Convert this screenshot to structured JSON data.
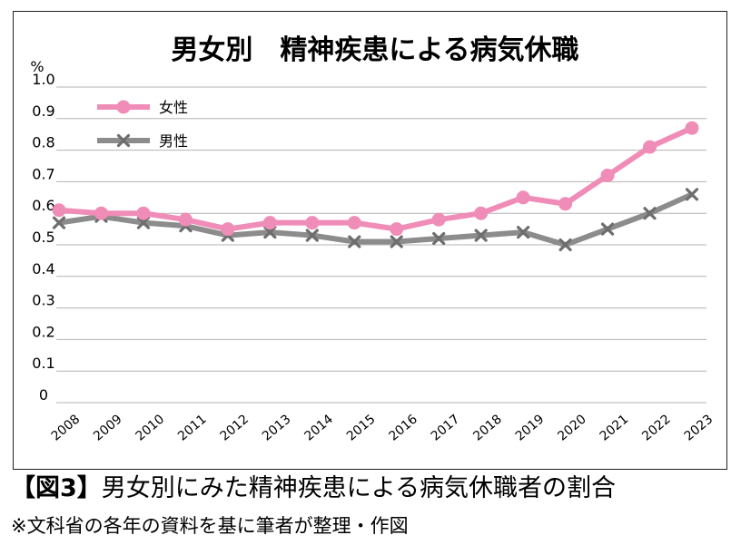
{
  "chart_data": {
    "type": "line",
    "title": "男女別　精神疾患による病気休職",
    "ylabel": "%",
    "ylim": [
      0,
      1.0
    ],
    "yticks": [
      "0",
      "0.1",
      "0.2",
      "0.3",
      "0.4",
      "0.5",
      "0.6",
      "0.7",
      "0.8",
      "0.9",
      "1.0"
    ],
    "grid": true,
    "legend_position": "top-left",
    "categories": [
      "2008",
      "2009",
      "2010",
      "2011",
      "2012",
      "2013",
      "2014",
      "2015",
      "2016",
      "2017",
      "2018",
      "2019",
      "2020",
      "2021",
      "2022",
      "2023"
    ],
    "series": [
      {
        "name": "女性",
        "color": "#f08cb8",
        "marker": "circle",
        "values": [
          0.61,
          0.6,
          0.6,
          0.58,
          0.55,
          0.57,
          0.57,
          0.57,
          0.55,
          0.58,
          0.6,
          0.65,
          0.63,
          0.72,
          0.81,
          0.87
        ]
      },
      {
        "name": "男性",
        "color": "#8c8c8c",
        "marker": "x",
        "values": [
          0.57,
          0.59,
          0.57,
          0.56,
          0.53,
          0.54,
          0.53,
          0.51,
          0.51,
          0.52,
          0.53,
          0.54,
          0.5,
          0.55,
          0.6,
          0.66
        ]
      }
    ]
  },
  "caption": {
    "figure_label": "【図3】",
    "text": "男女別にみた精神疾患による病気休職者の割合"
  },
  "note": "※文科省の各年の資料を基に筆者が整理・作図"
}
